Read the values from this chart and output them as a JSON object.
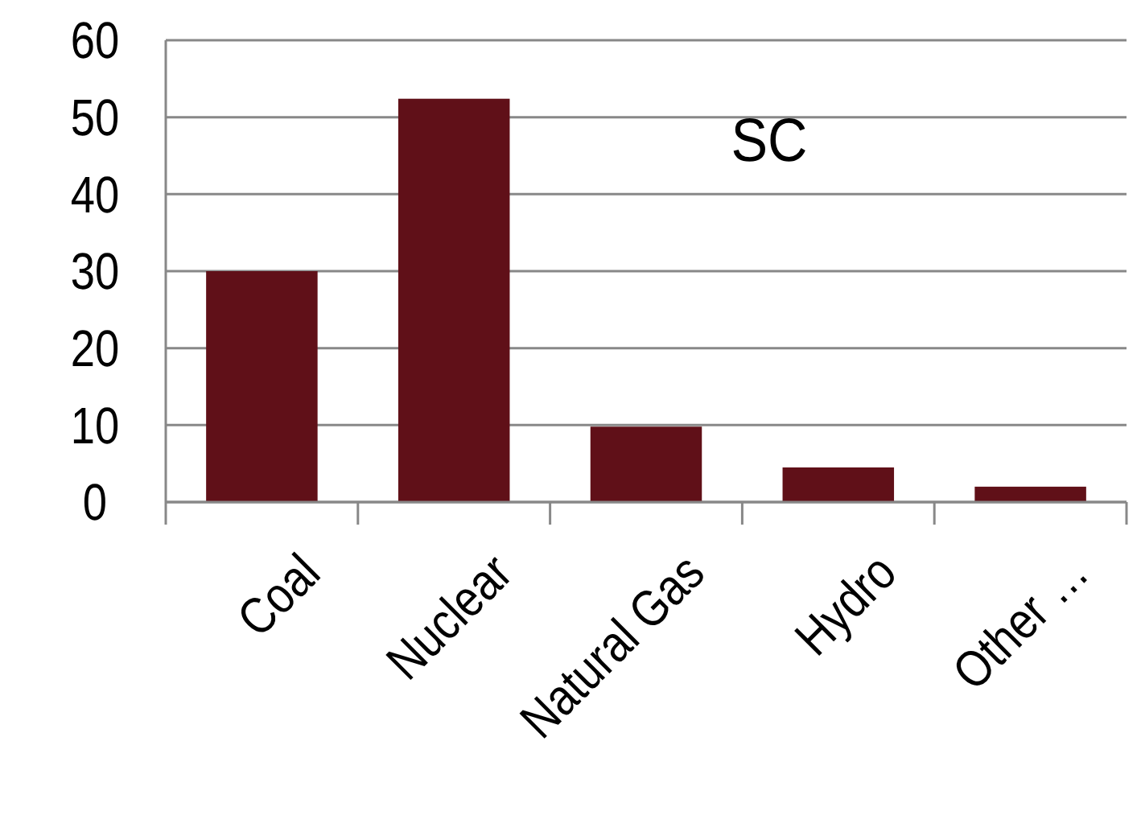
{
  "chart_data": {
    "type": "bar",
    "title": "SC",
    "categories": [
      "Coal",
      "Nuclear",
      "Natural Gas",
      "Hydro",
      "Other …"
    ],
    "values": [
      30,
      52.4,
      9.8,
      4.5,
      2.0
    ],
    "color": "#601018",
    "ylim": [
      0,
      60
    ],
    "yticks": [
      0,
      10,
      20,
      30,
      40,
      50,
      60
    ],
    "grid": "y"
  }
}
